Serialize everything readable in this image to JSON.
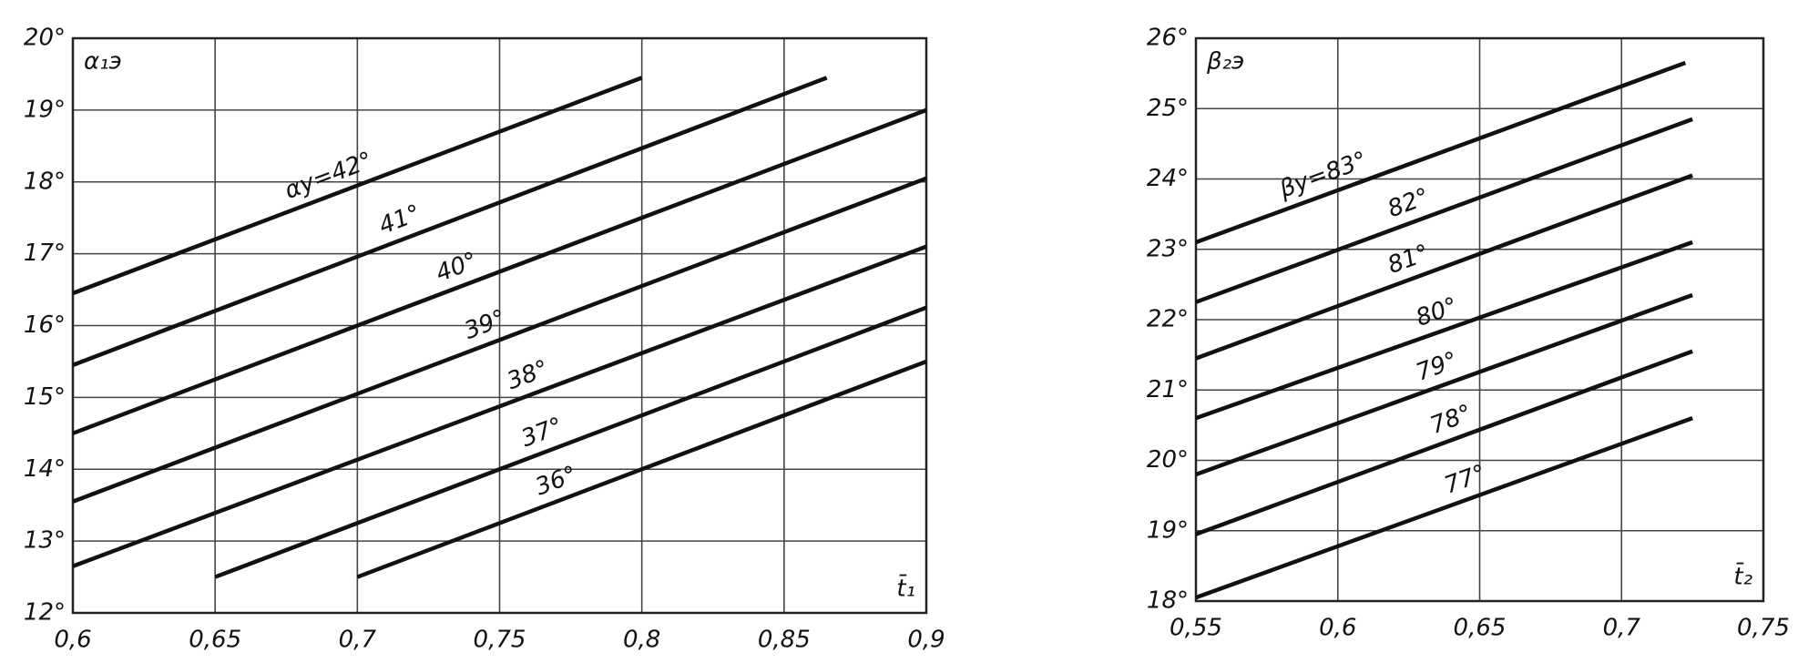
{
  "chart_data": [
    {
      "type": "line",
      "y_label": "α₁э",
      "x_label": "t̄₁",
      "xlim": [
        0.6,
        0.9
      ],
      "ylim": [
        12,
        20
      ],
      "grid": true,
      "color": "#111111",
      "xticks": [
        {
          "value": 0.6,
          "label": "0,6"
        },
        {
          "value": 0.65,
          "label": "0,65"
        },
        {
          "value": 0.7,
          "label": "0,7"
        },
        {
          "value": 0.75,
          "label": "0,75"
        },
        {
          "value": 0.8,
          "label": "0,8"
        },
        {
          "value": 0.85,
          "label": "0,85"
        },
        {
          "value": 0.9,
          "label": "0,9"
        }
      ],
      "yticks": [
        {
          "value": 12,
          "label": "12°"
        },
        {
          "value": 13,
          "label": "13°"
        },
        {
          "value": 14,
          "label": "14°"
        },
        {
          "value": 15,
          "label": "15°"
        },
        {
          "value": 16,
          "label": "16°"
        },
        {
          "value": 17,
          "label": "17°"
        },
        {
          "value": 18,
          "label": "18°"
        },
        {
          "value": 19,
          "label": "19°"
        },
        {
          "value": 20,
          "label": "20°"
        }
      ],
      "series": [
        {
          "name": "αy=42°",
          "x": [
            0.6,
            0.8
          ],
          "values": [
            16.45,
            19.45
          ]
        },
        {
          "name": "41°",
          "x": [
            0.6,
            0.865
          ],
          "values": [
            15.45,
            19.45
          ]
        },
        {
          "name": "40°",
          "x": [
            0.6,
            0.9
          ],
          "values": [
            14.5,
            19.0
          ]
        },
        {
          "name": "39°",
          "x": [
            0.6,
            0.9
          ],
          "values": [
            13.55,
            18.05
          ]
        },
        {
          "name": "38°",
          "x": [
            0.6,
            0.9
          ],
          "values": [
            12.65,
            17.1
          ]
        },
        {
          "name": "37°",
          "x": [
            0.65,
            0.9
          ],
          "values": [
            12.5,
            16.25
          ]
        },
        {
          "name": "36°",
          "x": [
            0.7,
            0.9
          ],
          "values": [
            12.5,
            15.5
          ]
        }
      ]
    },
    {
      "type": "line",
      "y_label": "β₂э",
      "x_label": "t̄₂",
      "xlim": [
        0.55,
        0.75
      ],
      "ylim": [
        18,
        26
      ],
      "grid": true,
      "color": "#111111",
      "xticks": [
        {
          "value": 0.55,
          "label": "0,55"
        },
        {
          "value": 0.6,
          "label": "0,6"
        },
        {
          "value": 0.65,
          "label": "0,65"
        },
        {
          "value": 0.7,
          "label": "0,7"
        },
        {
          "value": 0.75,
          "label": "0,75"
        }
      ],
      "yticks": [
        {
          "value": 18,
          "label": "18°"
        },
        {
          "value": 19,
          "label": "19°"
        },
        {
          "value": 20,
          "label": "20°"
        },
        {
          "value": 21,
          "label": "21°"
        },
        {
          "value": 22,
          "label": "22°"
        },
        {
          "value": 23,
          "label": "23°"
        },
        {
          "value": 24,
          "label": "24°"
        },
        {
          "value": 25,
          "label": "25°"
        },
        {
          "value": 26,
          "label": "26°"
        }
      ],
      "series": [
        {
          "name": "βy=83°",
          "x": [
            0.55,
            0.7225
          ],
          "values": [
            23.1,
            25.65
          ]
        },
        {
          "name": "82°",
          "x": [
            0.55,
            0.725
          ],
          "values": [
            22.25,
            24.85
          ]
        },
        {
          "name": "81°",
          "x": [
            0.55,
            0.725
          ],
          "values": [
            21.45,
            24.05
          ]
        },
        {
          "name": "80°",
          "x": [
            0.55,
            0.725
          ],
          "values": [
            20.6,
            23.1
          ]
        },
        {
          "name": "79°",
          "x": [
            0.55,
            0.725
          ],
          "values": [
            19.8,
            22.35
          ]
        },
        {
          "name": "78°",
          "x": [
            0.55,
            0.725
          ],
          "values": [
            18.95,
            21.55
          ]
        },
        {
          "name": "77°",
          "x": [
            0.55,
            0.725
          ],
          "values": [
            18.05,
            20.6
          ]
        }
      ]
    }
  ]
}
